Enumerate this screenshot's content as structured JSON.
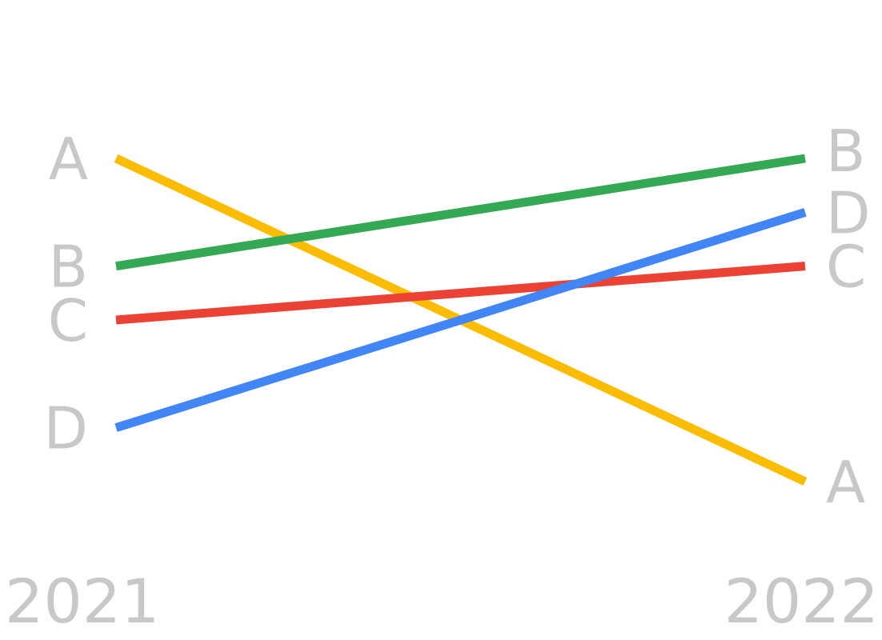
{
  "chart_data": {
    "type": "line",
    "subtype": "slope",
    "x": [
      "2021",
      "2022"
    ],
    "series": [
      {
        "name": "A",
        "values": [
          4,
          1
        ],
        "color": "#fbbc04"
      },
      {
        "name": "B",
        "values": [
          3,
          4
        ],
        "color": "#34a853"
      },
      {
        "name": "C",
        "values": [
          2.5,
          3.0
        ],
        "color": "#ea4335"
      },
      {
        "name": "D",
        "values": [
          1.5,
          3.5
        ],
        "color": "#4285f4"
      }
    ],
    "title": "",
    "xlabel": "",
    "ylabel": "",
    "grid": false,
    "legend": "none"
  }
}
